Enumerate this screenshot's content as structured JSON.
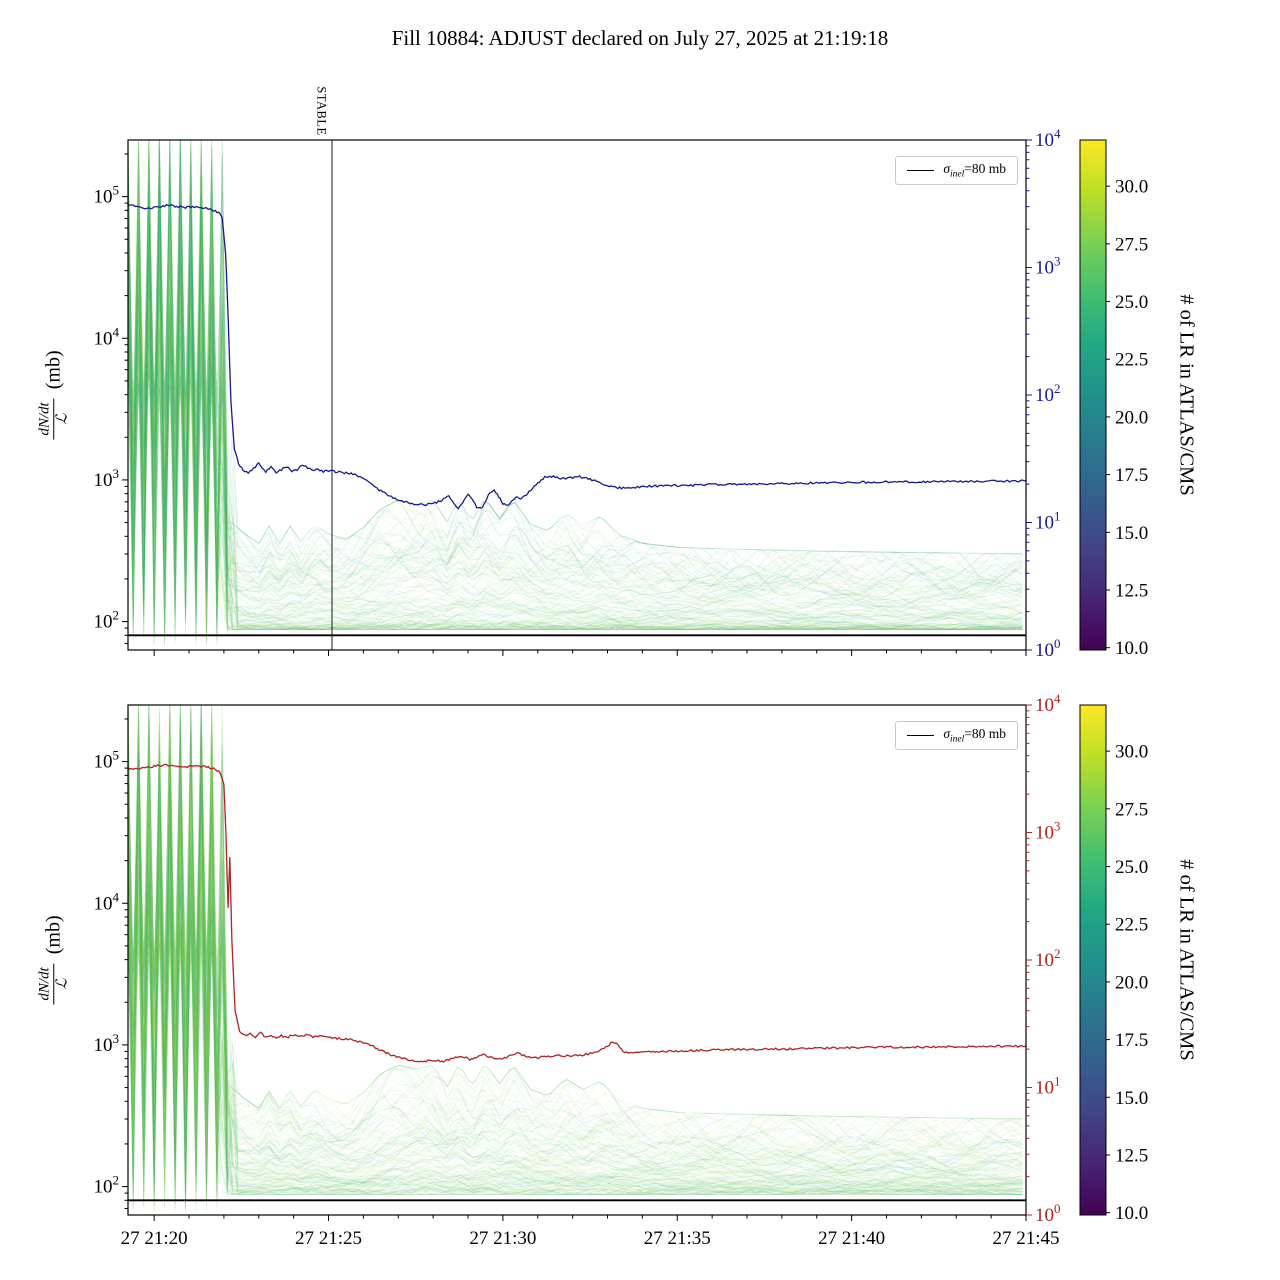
{
  "chart_data": {
    "type": "line",
    "title": "Fill 10884: ADJUST declared on July 27, 2025 at 21:19:18",
    "x_axis": {
      "min": 19.25,
      "max": 45,
      "minor_step": 1,
      "major_ticks": [
        {
          "t": 20,
          "label": "27 21:20"
        },
        {
          "t": 25,
          "label": "27 21:25"
        },
        {
          "t": 30,
          "label": "27 21:30"
        },
        {
          "t": 35,
          "label": "27 21:35"
        },
        {
          "t": 40,
          "label": "27 21:40"
        },
        {
          "t": 45,
          "label": "27 21:45"
        }
      ]
    },
    "y_left": {
      "scale": "log",
      "min": 63,
      "max": 251000,
      "tick_exponents": [
        2,
        3,
        4,
        5
      ],
      "label": {
        "num": "dN/dt",
        "den": "ℒ",
        "unit": "(mb)"
      }
    },
    "y_right": {
      "scale": "log",
      "min": 1,
      "max": 10000,
      "tick_exponents": [
        0,
        1,
        2,
        3,
        4
      ]
    },
    "sigma_inel_mb": 80,
    "legend": {
      "sigma": "σ",
      "sub": "inel",
      "rest": "=80 mb"
    },
    "stable_marker": {
      "t": 25.1,
      "label": "STABLE"
    },
    "colorbar": {
      "label": "# of LR in ATLAS/CMS",
      "vmin": 9.9,
      "vmax": 32.0,
      "ticks": [
        {
          "v": 10.0,
          "label": "10.0"
        },
        {
          "v": 12.5,
          "label": "12.5"
        },
        {
          "v": 15.0,
          "label": "15.0"
        },
        {
          "v": 17.5,
          "label": "17.5"
        },
        {
          "v": 20.0,
          "label": "20.0"
        },
        {
          "v": 22.5,
          "label": "22.5"
        },
        {
          "v": 25.0,
          "label": "25.0"
        },
        {
          "v": 27.5,
          "label": "27.5"
        },
        {
          "v": 30.0,
          "label": "30.0"
        }
      ],
      "viridis": [
        [
          0.0,
          "#440154"
        ],
        [
          0.1,
          "#482475"
        ],
        [
          0.2,
          "#414487"
        ],
        [
          0.3,
          "#355f8d"
        ],
        [
          0.4,
          "#2a788e"
        ],
        [
          0.5,
          "#21918c"
        ],
        [
          0.6,
          "#22a884"
        ],
        [
          0.7,
          "#44bf70"
        ],
        [
          0.8,
          "#7ad151"
        ],
        [
          0.9,
          "#bddf26"
        ],
        [
          1.0,
          "#fde725"
        ]
      ]
    },
    "band": {
      "n_traces": 150,
      "t_step": 0.15,
      "chaos_end": 22.05,
      "chaos_min": 66,
      "chaos_max": 300000,
      "color_value_range": [
        20,
        30
      ],
      "envelope": [
        {
          "t": 22.0,
          "lo": 88,
          "hi": 500
        },
        {
          "t": 22.6,
          "lo": 88,
          "hi": 380
        },
        {
          "t": 23.0,
          "lo": 88,
          "hi": 330
        },
        {
          "t": 23.3,
          "lo": 88,
          "hi": 430
        },
        {
          "t": 23.6,
          "lo": 88,
          "hi": 330
        },
        {
          "t": 23.9,
          "lo": 88,
          "hi": 430
        },
        {
          "t": 24.2,
          "lo": 88,
          "hi": 340
        },
        {
          "t": 24.6,
          "lo": 88,
          "hi": 440
        },
        {
          "t": 25.0,
          "lo": 88,
          "hi": 380
        },
        {
          "t": 25.5,
          "lo": 88,
          "hi": 350
        },
        {
          "t": 26.0,
          "lo": 88,
          "hi": 420
        },
        {
          "t": 26.5,
          "lo": 88,
          "hi": 560
        },
        {
          "t": 27.0,
          "lo": 88,
          "hi": 640
        },
        {
          "t": 27.5,
          "lo": 88,
          "hi": 600
        },
        {
          "t": 28.0,
          "lo": 88,
          "hi": 640
        },
        {
          "t": 28.4,
          "lo": 88,
          "hi": 460
        },
        {
          "t": 28.75,
          "lo": 88,
          "hi": 650
        },
        {
          "t": 29.1,
          "lo": 88,
          "hi": 460
        },
        {
          "t": 29.5,
          "lo": 88,
          "hi": 660
        },
        {
          "t": 29.9,
          "lo": 88,
          "hi": 480
        },
        {
          "t": 30.3,
          "lo": 88,
          "hi": 640
        },
        {
          "t": 30.8,
          "lo": 88,
          "hi": 440
        },
        {
          "t": 31.3,
          "lo": 88,
          "hi": 400
        },
        {
          "t": 31.8,
          "lo": 88,
          "hi": 520
        },
        {
          "t": 32.3,
          "lo": 88,
          "hi": 440
        },
        {
          "t": 32.8,
          "lo": 88,
          "hi": 500
        },
        {
          "t": 33.3,
          "lo": 88,
          "hi": 380
        },
        {
          "t": 34.0,
          "lo": 88,
          "hi": 330
        },
        {
          "t": 35.0,
          "lo": 88,
          "hi": 310
        },
        {
          "t": 37.0,
          "lo": 88,
          "hi": 300
        },
        {
          "t": 40.0,
          "lo": 88,
          "hi": 290
        },
        {
          "t": 45.0,
          "lo": 88,
          "hi": 280
        }
      ]
    },
    "subplots": [
      {
        "name": "top",
        "line_color": "#181894",
        "band_seed": 1337,
        "line_series": [
          [
            19.25,
            3150
          ],
          [
            19.45,
            3050
          ],
          [
            19.65,
            2950
          ],
          [
            19.9,
            2900
          ],
          [
            20.15,
            3000
          ],
          [
            20.4,
            3080
          ],
          [
            20.65,
            3020
          ],
          [
            20.9,
            2960
          ],
          [
            21.15,
            2980
          ],
          [
            21.4,
            2920
          ],
          [
            21.6,
            2880
          ],
          [
            21.8,
            2750
          ],
          [
            21.95,
            2500
          ],
          [
            22.05,
            1300
          ],
          [
            22.12,
            420
          ],
          [
            22.2,
            90
          ],
          [
            22.3,
            38
          ],
          [
            22.42,
            29
          ],
          [
            22.55,
            26
          ],
          [
            22.7,
            24.5
          ],
          [
            22.85,
            26.5
          ],
          [
            23.0,
            29
          ],
          [
            23.1,
            27
          ],
          [
            23.2,
            25
          ],
          [
            23.35,
            27.5
          ],
          [
            23.5,
            24.5
          ],
          [
            23.65,
            26
          ],
          [
            23.8,
            27.5
          ],
          [
            23.95,
            25
          ],
          [
            24.1,
            26
          ],
          [
            24.25,
            28.5
          ],
          [
            24.4,
            27
          ],
          [
            24.55,
            25.5
          ],
          [
            24.7,
            26
          ],
          [
            24.85,
            25
          ],
          [
            25.0,
            25.5
          ],
          [
            25.2,
            25
          ],
          [
            25.45,
            24.5
          ],
          [
            25.7,
            24
          ],
          [
            25.95,
            22.5
          ],
          [
            26.2,
            20.5
          ],
          [
            26.45,
            18
          ],
          [
            26.7,
            16.5
          ],
          [
            26.95,
            15.2
          ],
          [
            27.2,
            14.4
          ],
          [
            27.5,
            13.9
          ],
          [
            27.8,
            13.8
          ],
          [
            28.05,
            14.2
          ],
          [
            28.25,
            15
          ],
          [
            28.45,
            16
          ],
          [
            28.6,
            14
          ],
          [
            28.72,
            12.8
          ],
          [
            28.85,
            14.5
          ],
          [
            29.0,
            16.5
          ],
          [
            29.12,
            15
          ],
          [
            29.25,
            13.2
          ],
          [
            29.38,
            12.8
          ],
          [
            29.5,
            14.8
          ],
          [
            29.62,
            16.8
          ],
          [
            29.75,
            17.8
          ],
          [
            29.88,
            16
          ],
          [
            30.0,
            14
          ],
          [
            30.12,
            13.6
          ],
          [
            30.25,
            14.5
          ],
          [
            30.38,
            16
          ],
          [
            30.5,
            15
          ],
          [
            30.62,
            16
          ],
          [
            30.75,
            17.5
          ],
          [
            30.9,
            19
          ],
          [
            31.05,
            21
          ],
          [
            31.2,
            22.8
          ],
          [
            31.4,
            23
          ],
          [
            31.6,
            22.3
          ],
          [
            31.8,
            22
          ],
          [
            32.0,
            22.4
          ],
          [
            32.2,
            22.8
          ],
          [
            32.4,
            22.2
          ],
          [
            32.6,
            21.4
          ],
          [
            32.8,
            20.4
          ],
          [
            33.0,
            19.4
          ],
          [
            33.25,
            18.8
          ],
          [
            33.5,
            18.6
          ],
          [
            33.8,
            18.9
          ],
          [
            34.2,
            19.2
          ],
          [
            34.6,
            19.4
          ],
          [
            35.0,
            19.5
          ],
          [
            35.5,
            19.6
          ],
          [
            36.0,
            19.8
          ],
          [
            37.0,
            20.0
          ],
          [
            38.0,
            20.2
          ],
          [
            39.0,
            20.4
          ],
          [
            40.0,
            20.6
          ],
          [
            41.0,
            20.8
          ],
          [
            42.0,
            20.9
          ],
          [
            43.0,
            21.0
          ],
          [
            44.0,
            21.1
          ],
          [
            45.0,
            21.2
          ]
        ]
      },
      {
        "name": "bottom",
        "line_color": "#b22222",
        "band_seed": 7331,
        "line_series": [
          [
            19.25,
            3100
          ],
          [
            19.5,
            3150
          ],
          [
            19.75,
            3250
          ],
          [
            20.0,
            3300
          ],
          [
            20.3,
            3380
          ],
          [
            20.6,
            3350
          ],
          [
            20.9,
            3280
          ],
          [
            21.2,
            3320
          ],
          [
            21.45,
            3300
          ],
          [
            21.7,
            3180
          ],
          [
            21.9,
            2950
          ],
          [
            22.0,
            2400
          ],
          [
            22.06,
            950
          ],
          [
            22.12,
            260
          ],
          [
            22.17,
            650
          ],
          [
            22.23,
            140
          ],
          [
            22.32,
            40
          ],
          [
            22.45,
            28
          ],
          [
            22.6,
            25.5
          ],
          [
            22.75,
            26.5
          ],
          [
            22.9,
            25
          ],
          [
            23.05,
            27
          ],
          [
            23.2,
            24.5
          ],
          [
            23.35,
            26
          ],
          [
            23.5,
            24
          ],
          [
            23.65,
            25.5
          ],
          [
            23.8,
            24.5
          ],
          [
            23.95,
            26
          ],
          [
            24.15,
            25
          ],
          [
            24.35,
            26
          ],
          [
            24.55,
            25
          ],
          [
            24.75,
            25.5
          ],
          [
            25.0,
            24.8
          ],
          [
            25.3,
            24.2
          ],
          [
            25.6,
            23.8
          ],
          [
            25.9,
            23
          ],
          [
            26.2,
            21.5
          ],
          [
            26.5,
            19.5
          ],
          [
            26.8,
            18
          ],
          [
            27.1,
            17
          ],
          [
            27.4,
            16.2
          ],
          [
            27.7,
            16
          ],
          [
            28.0,
            16.4
          ],
          [
            28.3,
            16
          ],
          [
            28.6,
            17
          ],
          [
            28.85,
            17.6
          ],
          [
            29.05,
            16.6
          ],
          [
            29.25,
            17.2
          ],
          [
            29.45,
            18
          ],
          [
            29.65,
            17.2
          ],
          [
            29.85,
            16.6
          ],
          [
            30.05,
            17
          ],
          [
            30.25,
            18
          ],
          [
            30.45,
            18.6
          ],
          [
            30.65,
            17.6
          ],
          [
            30.85,
            16.9
          ],
          [
            31.05,
            17.2
          ],
          [
            31.3,
            17.6
          ],
          [
            31.6,
            18
          ],
          [
            31.9,
            17.6
          ],
          [
            32.2,
            17.9
          ],
          [
            32.5,
            18.4
          ],
          [
            32.8,
            19.5
          ],
          [
            33.0,
            21
          ],
          [
            33.15,
            23
          ],
          [
            33.3,
            21.5
          ],
          [
            33.45,
            19
          ],
          [
            33.6,
            18.6
          ],
          [
            33.9,
            18.9
          ],
          [
            34.3,
            19.1
          ],
          [
            34.8,
            19.3
          ],
          [
            35.4,
            19.5
          ],
          [
            36.0,
            19.7
          ],
          [
            37.0,
            19.9
          ],
          [
            38.0,
            20.1
          ],
          [
            39.0,
            20.3
          ],
          [
            40.0,
            20.5
          ],
          [
            41.0,
            20.7
          ],
          [
            42.0,
            20.8
          ],
          [
            43.0,
            20.9
          ],
          [
            44.0,
            21.0
          ],
          [
            45.0,
            21.1
          ]
        ]
      }
    ]
  }
}
